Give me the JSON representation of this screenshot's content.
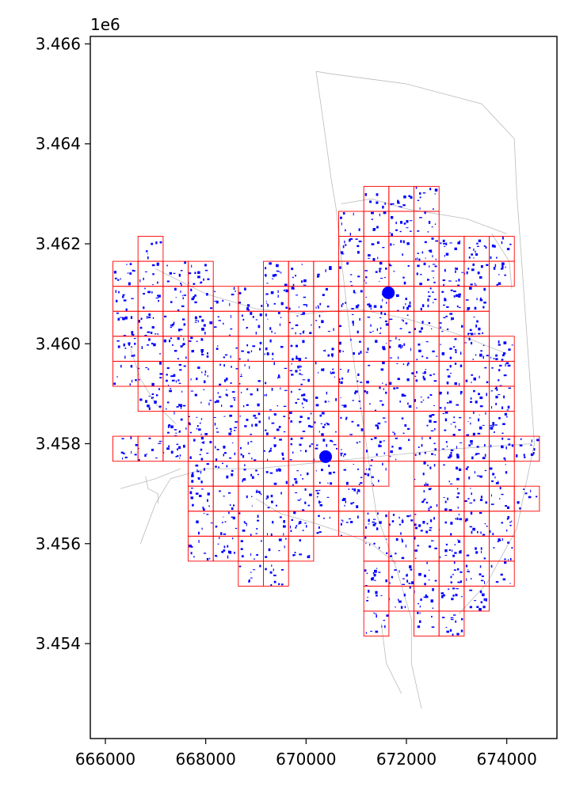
{
  "chart_data": {
    "type": "scatter",
    "title": "",
    "xlabel": "",
    "ylabel": "",
    "y_offset_label": "1e6",
    "xlim": [
      665700,
      675000
    ],
    "ylim": [
      3452100,
      3466150
    ],
    "x_ticks": [
      666000,
      668000,
      670000,
      672000,
      674000
    ],
    "x_tick_labels": [
      "666000",
      "668000",
      "670000",
      "672000",
      "674000"
    ],
    "y_ticks": [
      3454000,
      3456000,
      3458000,
      3460000,
      3462000,
      3464000,
      3466000
    ],
    "y_tick_labels": [
      "3.454",
      "3.456",
      "3.458",
      "3.460",
      "3.462",
      "3.464",
      "3.466"
    ],
    "grid": false,
    "colors": {
      "grid_cells": "#ff0000",
      "buildings": "#0000ff",
      "roads": "#bbbbbb"
    },
    "grid_cell_size": 500,
    "grid_cells_lower_left": [
      [
        671150,
        3462650
      ],
      [
        671650,
        3462650
      ],
      [
        672150,
        3462650
      ],
      [
        670650,
        3462150
      ],
      [
        671150,
        3462150
      ],
      [
        671650,
        3462150
      ],
      [
        672150,
        3462150
      ],
      [
        666650,
        3461650
      ],
      [
        670650,
        3461650
      ],
      [
        671150,
        3461650
      ],
      [
        671650,
        3461650
      ],
      [
        672150,
        3461650
      ],
      [
        672650,
        3461650
      ],
      [
        673150,
        3461650
      ],
      [
        673650,
        3461650
      ],
      [
        666150,
        3461150
      ],
      [
        666650,
        3461150
      ],
      [
        667150,
        3461150
      ],
      [
        667650,
        3461150
      ],
      [
        669150,
        3461150
      ],
      [
        669650,
        3461150
      ],
      [
        670150,
        3461150
      ],
      [
        670650,
        3461150
      ],
      [
        671150,
        3461150
      ],
      [
        671650,
        3461150
      ],
      [
        672150,
        3461150
      ],
      [
        672650,
        3461150
      ],
      [
        673150,
        3461150
      ],
      [
        673650,
        3461150
      ],
      [
        666150,
        3460650
      ],
      [
        666650,
        3460650
      ],
      [
        667150,
        3460650
      ],
      [
        667650,
        3460650
      ],
      [
        668150,
        3460650
      ],
      [
        668650,
        3460650
      ],
      [
        669150,
        3460650
      ],
      [
        669650,
        3460650
      ],
      [
        670150,
        3460650
      ],
      [
        670650,
        3460650
      ],
      [
        671150,
        3460650
      ],
      [
        671650,
        3460650
      ],
      [
        672150,
        3460650
      ],
      [
        672650,
        3460650
      ],
      [
        673150,
        3460650
      ],
      [
        666150,
        3460150
      ],
      [
        666650,
        3460150
      ],
      [
        667150,
        3460150
      ],
      [
        667650,
        3460150
      ],
      [
        668150,
        3460150
      ],
      [
        668650,
        3460150
      ],
      [
        669150,
        3460150
      ],
      [
        669650,
        3460150
      ],
      [
        670150,
        3460150
      ],
      [
        670650,
        3460150
      ],
      [
        671150,
        3460150
      ],
      [
        671650,
        3460150
      ],
      [
        672150,
        3460150
      ],
      [
        672650,
        3460150
      ],
      [
        673150,
        3460150
      ],
      [
        666150,
        3459650
      ],
      [
        666650,
        3459650
      ],
      [
        667150,
        3459650
      ],
      [
        667650,
        3459650
      ],
      [
        668150,
        3459650
      ],
      [
        668650,
        3459650
      ],
      [
        669150,
        3459650
      ],
      [
        669650,
        3459650
      ],
      [
        670150,
        3459650
      ],
      [
        670650,
        3459650
      ],
      [
        671150,
        3459650
      ],
      [
        671650,
        3459650
      ],
      [
        672150,
        3459650
      ],
      [
        672650,
        3459650
      ],
      [
        673150,
        3459650
      ],
      [
        673650,
        3459650
      ],
      [
        666150,
        3459150
      ],
      [
        666650,
        3459150
      ],
      [
        667150,
        3459150
      ],
      [
        667650,
        3459150
      ],
      [
        668150,
        3459150
      ],
      [
        668650,
        3459150
      ],
      [
        669150,
        3459150
      ],
      [
        669650,
        3459150
      ],
      [
        670150,
        3459150
      ],
      [
        670650,
        3459150
      ],
      [
        671150,
        3459150
      ],
      [
        671650,
        3459150
      ],
      [
        672150,
        3459150
      ],
      [
        672650,
        3459150
      ],
      [
        673150,
        3459150
      ],
      [
        673650,
        3459150
      ],
      [
        666650,
        3458650
      ],
      [
        667150,
        3458650
      ],
      [
        667650,
        3458650
      ],
      [
        668150,
        3458650
      ],
      [
        668650,
        3458650
      ],
      [
        669150,
        3458650
      ],
      [
        669650,
        3458650
      ],
      [
        670150,
        3458650
      ],
      [
        670650,
        3458650
      ],
      [
        671150,
        3458650
      ],
      [
        671650,
        3458650
      ],
      [
        672150,
        3458650
      ],
      [
        672650,
        3458650
      ],
      [
        673150,
        3458650
      ],
      [
        673650,
        3458650
      ],
      [
        667150,
        3458150
      ],
      [
        667650,
        3458150
      ],
      [
        668150,
        3458150
      ],
      [
        668650,
        3458150
      ],
      [
        669150,
        3458150
      ],
      [
        669650,
        3458150
      ],
      [
        670150,
        3458150
      ],
      [
        670650,
        3458150
      ],
      [
        671150,
        3458150
      ],
      [
        671650,
        3458150
      ],
      [
        672150,
        3458150
      ],
      [
        672650,
        3458150
      ],
      [
        673150,
        3458150
      ],
      [
        673650,
        3458150
      ],
      [
        666150,
        3457650
      ],
      [
        666650,
        3457650
      ],
      [
        667150,
        3457650
      ],
      [
        667650,
        3457650
      ],
      [
        668150,
        3457650
      ],
      [
        668650,
        3457650
      ],
      [
        669150,
        3457650
      ],
      [
        669650,
        3457650
      ],
      [
        670150,
        3457650
      ],
      [
        670650,
        3457650
      ],
      [
        671150,
        3457650
      ],
      [
        671650,
        3457650
      ],
      [
        672150,
        3457650
      ],
      [
        672650,
        3457650
      ],
      [
        673150,
        3457650
      ],
      [
        673650,
        3457650
      ],
      [
        674150,
        3457650
      ],
      [
        667650,
        3457150
      ],
      [
        668150,
        3457150
      ],
      [
        668650,
        3457150
      ],
      [
        669150,
        3457150
      ],
      [
        669650,
        3457150
      ],
      [
        670150,
        3457150
      ],
      [
        670650,
        3457150
      ],
      [
        671150,
        3457150
      ],
      [
        672150,
        3457150
      ],
      [
        672650,
        3457150
      ],
      [
        673150,
        3457150
      ],
      [
        673650,
        3457150
      ],
      [
        667650,
        3456650
      ],
      [
        668150,
        3456650
      ],
      [
        668650,
        3456650
      ],
      [
        669150,
        3456650
      ],
      [
        669650,
        3456650
      ],
      [
        670150,
        3456650
      ],
      [
        670650,
        3456650
      ],
      [
        672150,
        3456650
      ],
      [
        672650,
        3456650
      ],
      [
        673150,
        3456650
      ],
      [
        673650,
        3456650
      ],
      [
        674150,
        3456650
      ],
      [
        667650,
        3456150
      ],
      [
        668150,
        3456150
      ],
      [
        668650,
        3456150
      ],
      [
        669150,
        3456150
      ],
      [
        669650,
        3456150
      ],
      [
        670150,
        3456150
      ],
      [
        670650,
        3456150
      ],
      [
        671150,
        3456150
      ],
      [
        671650,
        3456150
      ],
      [
        672150,
        3456150
      ],
      [
        672650,
        3456150
      ],
      [
        673150,
        3456150
      ],
      [
        673650,
        3456150
      ],
      [
        667650,
        3455650
      ],
      [
        668150,
        3455650
      ],
      [
        668650,
        3455650
      ],
      [
        669150,
        3455650
      ],
      [
        669650,
        3455650
      ],
      [
        671150,
        3455650
      ],
      [
        671650,
        3455650
      ],
      [
        672150,
        3455650
      ],
      [
        672650,
        3455650
      ],
      [
        673150,
        3455650
      ],
      [
        673650,
        3455650
      ],
      [
        668650,
        3455150
      ],
      [
        669150,
        3455150
      ],
      [
        671150,
        3455150
      ],
      [
        671650,
        3455150
      ],
      [
        672150,
        3455150
      ],
      [
        672650,
        3455150
      ],
      [
        673150,
        3455150
      ],
      [
        673650,
        3455150
      ],
      [
        671150,
        3454650
      ],
      [
        671650,
        3454650
      ],
      [
        672150,
        3454650
      ],
      [
        672650,
        3454650
      ],
      [
        673150,
        3454650
      ],
      [
        671150,
        3454150
      ],
      [
        672150,
        3454150
      ],
      [
        672650,
        3454150
      ]
    ],
    "large_building_markers": [
      [
        671640,
        3461020
      ],
      [
        670390,
        3457740
      ]
    ],
    "road_paths": [
      [
        [
          670200,
          3465450
        ],
        [
          670500,
          3465400
        ],
        [
          672000,
          3465200
        ],
        [
          673500,
          3464800
        ],
        [
          674150,
          3464100
        ],
        [
          674200,
          3463000
        ],
        [
          674300,
          3461600
        ],
        [
          674550,
          3458000
        ],
        [
          674200,
          3456300
        ],
        [
          673600,
          3455200
        ],
        [
          673050,
          3454600
        ]
      ],
      [
        [
          670200,
          3465450
        ],
        [
          670350,
          3464400
        ],
        [
          670500,
          3463300
        ],
        [
          670600,
          3462700
        ],
        [
          670700,
          3461700
        ],
        [
          670900,
          3460000
        ],
        [
          671200,
          3458000
        ],
        [
          671400,
          3456600
        ],
        [
          671800,
          3455500
        ],
        [
          672100,
          3454500
        ],
        [
          672100,
          3453600
        ],
        [
          672300,
          3452700
        ]
      ],
      [
        [
          666700,
          3456000
        ],
        [
          667000,
          3456800
        ],
        [
          667300,
          3457300
        ],
        [
          668000,
          3457500
        ],
        [
          669000,
          3457500
        ],
        [
          670000,
          3457600
        ],
        [
          671000,
          3457700
        ],
        [
          672000,
          3457800
        ],
        [
          673000,
          3457900
        ],
        [
          674500,
          3458000
        ]
      ],
      [
        [
          666300,
          3457100
        ],
        [
          667000,
          3457300
        ],
        [
          667500,
          3457500
        ]
      ],
      [
        [
          670700,
          3462800
        ],
        [
          671300,
          3462900
        ],
        [
          672000,
          3462700
        ],
        [
          673200,
          3462500
        ],
        [
          674000,
          3462200
        ]
      ],
      [
        [
          667000,
          3461500
        ],
        [
          668000,
          3461000
        ],
        [
          669000,
          3460700
        ],
        [
          670000,
          3460600
        ],
        [
          671000,
          3460700
        ],
        [
          672000,
          3460500
        ],
        [
          673000,
          3460200
        ],
        [
          674000,
          3459800
        ]
      ],
      [
        [
          669000,
          3456900
        ],
        [
          669500,
          3456600
        ],
        [
          670200,
          3456400
        ],
        [
          670800,
          3456200
        ],
        [
          671300,
          3456000
        ],
        [
          671800,
          3455600
        ]
      ],
      [
        [
          671500,
          3454400
        ],
        [
          671600,
          3453600
        ],
        [
          671900,
          3453000
        ]
      ],
      [
        [
          666800,
          3457350
        ],
        [
          666850,
          3457100
        ],
        [
          667050,
          3457000
        ],
        [
          667050,
          3456800
        ]
      ],
      [
        [
          673700,
          3462200
        ],
        [
          674050,
          3461650
        ],
        [
          674100,
          3461100
        ]
      ],
      [
        [
          666500,
          3459900
        ],
        [
          666700,
          3459300
        ],
        [
          667000,
          3458800
        ],
        [
          667400,
          3458400
        ]
      ]
    ]
  }
}
